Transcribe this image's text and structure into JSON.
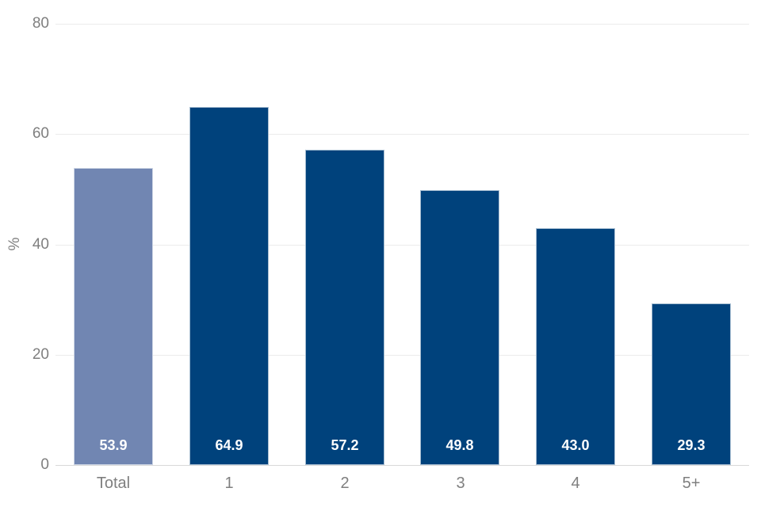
{
  "chart_data": {
    "type": "bar",
    "categories": [
      "Total",
      "1",
      "2",
      "3",
      "4",
      "5+"
    ],
    "values": [
      53.9,
      64.9,
      57.2,
      49.8,
      43.0,
      29.3
    ],
    "value_labels": [
      "53.9",
      "64.9",
      "57.2",
      "49.8",
      "43.0",
      "29.3"
    ],
    "title": "",
    "xlabel": "",
    "ylabel": "%",
    "ylim": [
      0,
      80
    ],
    "yticks": [
      0,
      20,
      40,
      60,
      80
    ],
    "grid": true,
    "legend": false,
    "bar_colors": [
      "#7186b2",
      "#00427c",
      "#00427c",
      "#00427c",
      "#00427c",
      "#00427c"
    ],
    "colors": {
      "bar_default": "#00427c",
      "bar_highlight": "#7186b2",
      "value_label": "#ffffff",
      "axis_text": "#7f7f7f",
      "gridline": "#ebebeb",
      "baseline": "#d9d9d9",
      "background": "#ffffff"
    }
  }
}
